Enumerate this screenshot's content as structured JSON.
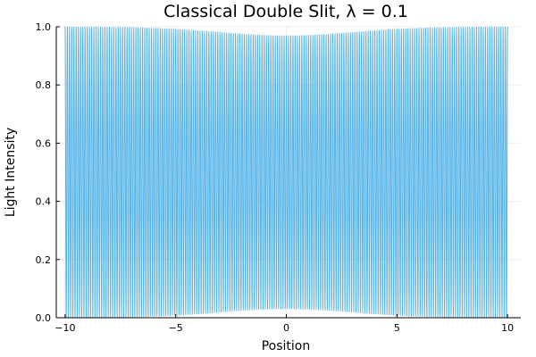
{
  "chart_data": {
    "type": "line",
    "title": "Classical Double Slit, λ = 0.1",
    "xlabel": "Position",
    "ylabel": "Light Intensity",
    "xlim": [
      -10,
      10
    ],
    "ylim": [
      0,
      1
    ],
    "xticks": [
      -10,
      -5,
      0,
      5,
      10
    ],
    "xtick_labels": [
      "−10",
      "−5",
      "0",
      "5",
      "10"
    ],
    "yticks": [
      0,
      0.2,
      0.4,
      0.6,
      0.8,
      1.0
    ],
    "ytick_labels": [
      "0.0",
      "0.2",
      "0.4",
      "0.6",
      "0.8",
      "1.0"
    ],
    "grid": true,
    "legend": "none",
    "series": [
      {
        "color": "#56b4e9",
        "x_range": [
          -10,
          10
        ],
        "samples": 4001,
        "fringe_spacing": 0.1,
        "center_peak": 0.97,
        "center_min": 0.03,
        "edge_peak": 1.0,
        "edge_min": 0.0
      }
    ]
  }
}
